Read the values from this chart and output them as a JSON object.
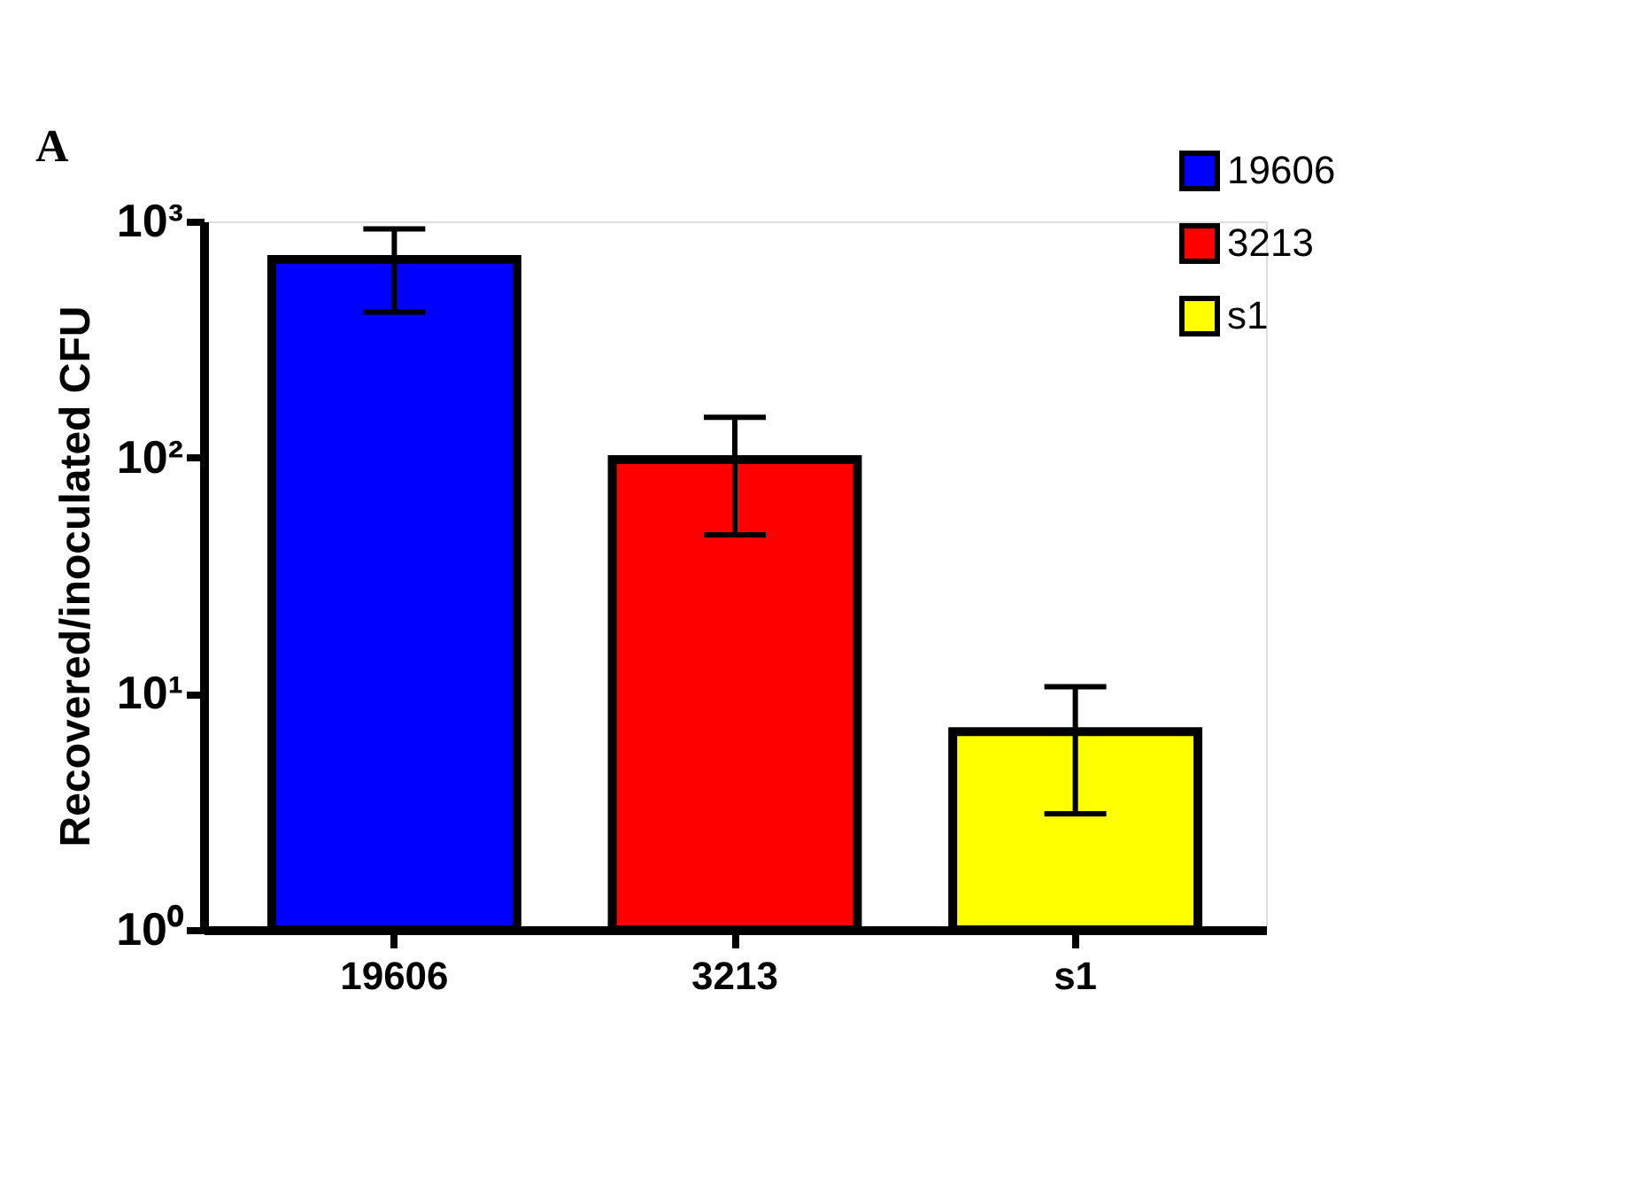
{
  "chart_data": {
    "type": "bar",
    "ylabel": "Recovered/inoculated CFU",
    "categories": [
      "19606",
      "3213",
      "s1"
    ],
    "series": [
      {
        "name": "19606",
        "color": "#0000ff",
        "values": [
          690,
          null,
          null
        ],
        "errors": [
          [
            413,
            930
          ],
          null,
          null
        ]
      },
      {
        "name": "3213",
        "color": "#ff0000",
        "values": [
          null,
          98,
          null
        ],
        "errors": [
          null,
          [
            47,
            148
          ],
          null
        ]
      },
      {
        "name": "s1",
        "color": "#ffff00",
        "values": [
          null,
          null,
          6.9
        ],
        "errors": [
          null,
          null,
          [
            3.1,
            10.7
          ]
        ]
      }
    ],
    "log": true,
    "ylim": [
      1,
      1000
    ],
    "yticks": [
      {
        "value": 1,
        "label": "10⁰"
      },
      {
        "value": 10,
        "label": "10¹"
      },
      {
        "value": 100,
        "label": "10²"
      },
      {
        "value": 1000,
        "label": "10³"
      }
    ],
    "grid": false,
    "legend": "top right",
    "annotations": [
      "A"
    ]
  }
}
